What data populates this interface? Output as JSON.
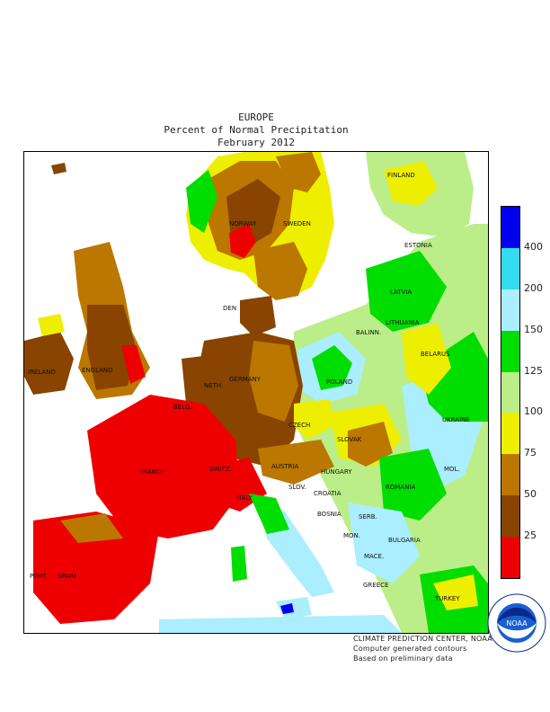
{
  "header": {
    "region": "EUROPE",
    "title": "Percent of Normal Precipitation",
    "period": "February 2012"
  },
  "legend": {
    "levels": [
      {
        "label": "",
        "color": "#0000ee"
      },
      {
        "label": "400",
        "color": "#0000ee"
      },
      {
        "label": "",
        "color": "#33ddee"
      },
      {
        "label": "200",
        "color": "#33ddee"
      },
      {
        "label": "150",
        "color": "#aaeeff"
      },
      {
        "label": "125",
        "color": "#00dd00"
      },
      {
        "label": "100",
        "color": "#bbee88"
      },
      {
        "label": "75",
        "color": "#eeee00"
      },
      {
        "label": "50",
        "color": "#bb7700"
      },
      {
        "label": "25",
        "color": "#884400"
      },
      {
        "label": "",
        "color": "#ee0000"
      }
    ],
    "ticks": [
      "400",
      "200",
      "150",
      "125",
      "100",
      "75",
      "50",
      "25"
    ]
  },
  "countries": [
    "NORWAY",
    "SWEDEN",
    "FINLAND",
    "ESTONIA",
    "LATVIA",
    "LITHUANIA",
    "BALINN.",
    "BELARUS",
    "DEN",
    "IRELAND",
    "ENGLAND",
    "NETH.",
    "BELG.",
    "GERMANY",
    "POLAND",
    "CZECH",
    "SLOVAK",
    "UKRAINE",
    "FRANCE",
    "SWITZ.",
    "AUSTRIA",
    "HUNGARY",
    "MOL.",
    "ROMANIA",
    "SLOV.",
    "CROATIA",
    "ITALY",
    "BOSNIA",
    "SERB.",
    "MON.",
    "BULGARIA",
    "MACE.",
    "GREECE",
    "TURKEY",
    "PORT.",
    "SPAIN"
  ],
  "credits": {
    "line1": "CLIMATE PREDICTION CENTER, NOAA",
    "line2": "Computer generated contours",
    "line3": "Based on preliminary data"
  },
  "logo": {
    "text": "NOAA",
    "ring_text": "NATIONAL OCEANIC AND ATMOSPHERIC ADMINISTRATION · U.S. DEPARTMENT OF COMMERCE"
  }
}
